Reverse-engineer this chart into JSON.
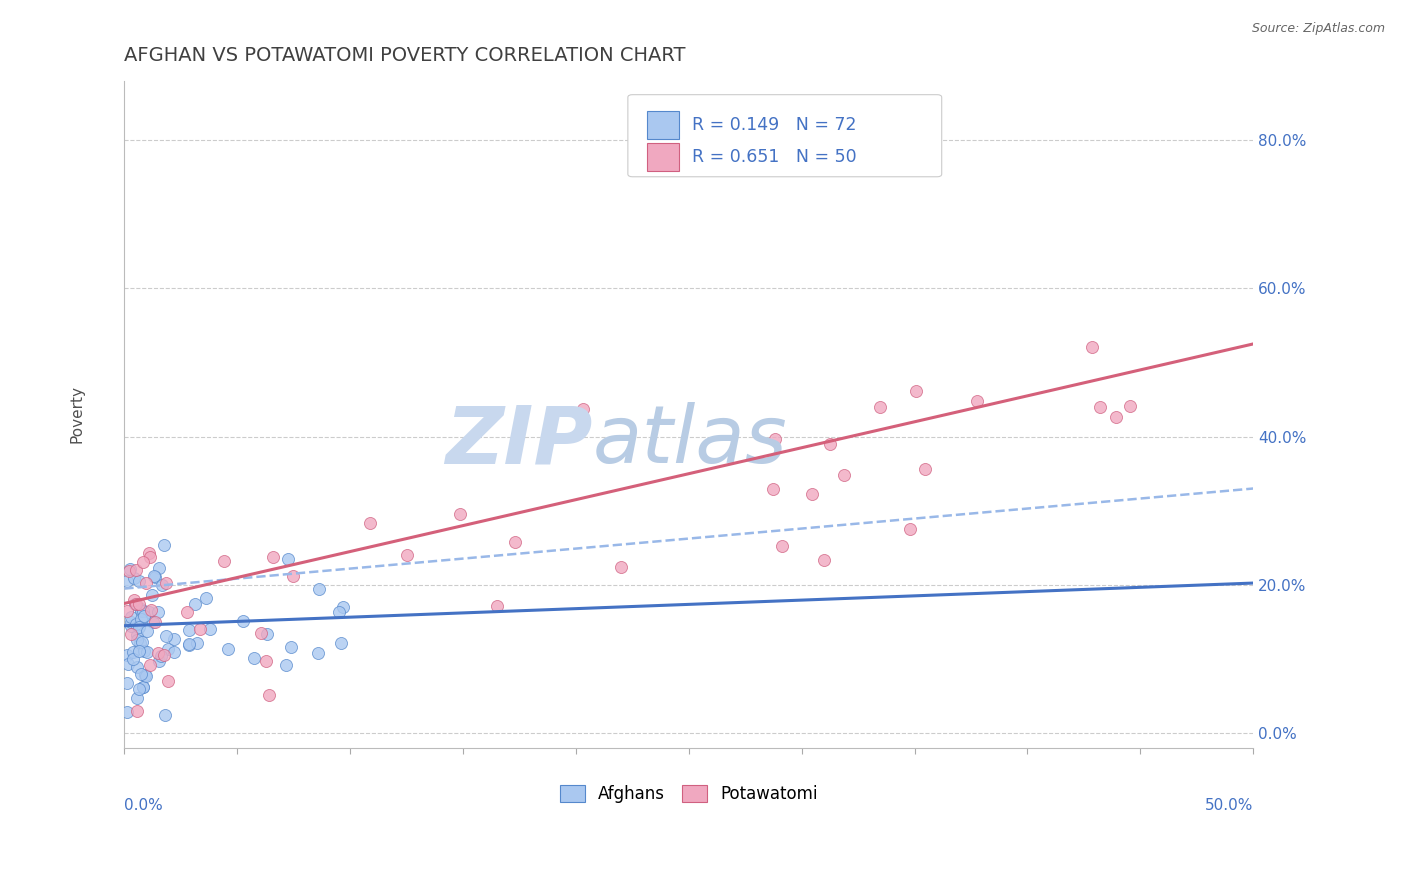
{
  "title": "AFGHAN VS POTAWATOMI POVERTY CORRELATION CHART",
  "source": "Source: ZipAtlas.com",
  "ylabel": "Poverty",
  "x_min": 0.0,
  "x_max": 0.5,
  "y_min": -0.02,
  "y_max": 0.88,
  "afghan_R": 0.149,
  "afghan_N": 72,
  "potawatomi_R": 0.651,
  "potawatomi_N": 50,
  "afghan_color": "#aac8f0",
  "afghan_edge_color": "#5588cc",
  "potawatomi_color": "#f0a8c0",
  "potawatomi_edge_color": "#d06080",
  "afghan_line_color": "#4472c4",
  "potawatomi_line_color": "#d4607a",
  "dashed_line_color": "#99b8e8",
  "label_color": "#4472c4",
  "background_color": "#ffffff",
  "title_color": "#404040",
  "title_fontsize": 14,
  "watermark_zip_color": "#c8d8ee",
  "watermark_atlas_color": "#b8cce4"
}
